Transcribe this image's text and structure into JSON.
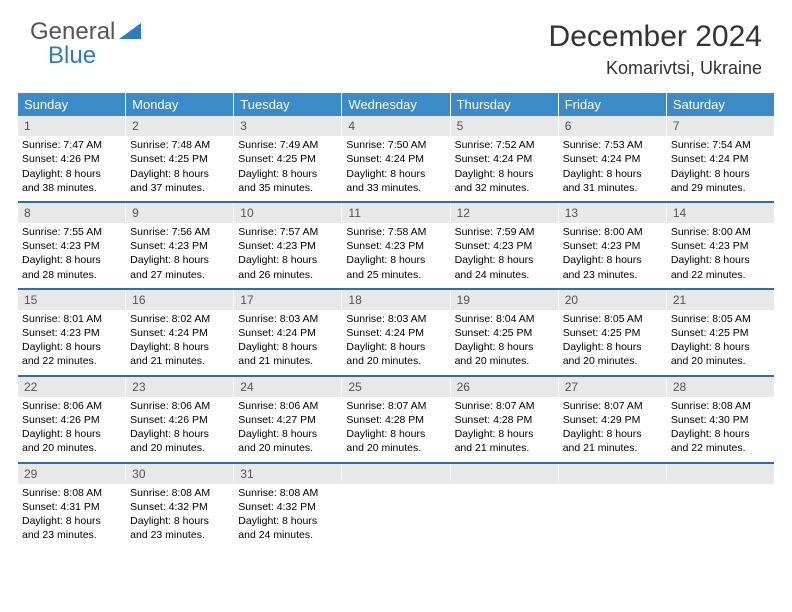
{
  "brand": {
    "part1": "General",
    "part2": "Blue"
  },
  "title": "December 2024",
  "location": "Komarivtsi, Ukraine",
  "colors": {
    "header_bg": "#3b8bc8",
    "header_text": "#ffffff",
    "week_border": "#2f6fa8",
    "daynum_bg": "#e8e8e8",
    "text": "#000000",
    "logo_blue": "#2f7bbf",
    "logo_gray": "#555555"
  },
  "dayNames": [
    "Sunday",
    "Monday",
    "Tuesday",
    "Wednesday",
    "Thursday",
    "Friday",
    "Saturday"
  ],
  "weeks": [
    [
      {
        "n": "1",
        "sr": "7:47 AM",
        "ss": "4:26 PM",
        "dl": "8 hours and 38 minutes."
      },
      {
        "n": "2",
        "sr": "7:48 AM",
        "ss": "4:25 PM",
        "dl": "8 hours and 37 minutes."
      },
      {
        "n": "3",
        "sr": "7:49 AM",
        "ss": "4:25 PM",
        "dl": "8 hours and 35 minutes."
      },
      {
        "n": "4",
        "sr": "7:50 AM",
        "ss": "4:24 PM",
        "dl": "8 hours and 33 minutes."
      },
      {
        "n": "5",
        "sr": "7:52 AM",
        "ss": "4:24 PM",
        "dl": "8 hours and 32 minutes."
      },
      {
        "n": "6",
        "sr": "7:53 AM",
        "ss": "4:24 PM",
        "dl": "8 hours and 31 minutes."
      },
      {
        "n": "7",
        "sr": "7:54 AM",
        "ss": "4:24 PM",
        "dl": "8 hours and 29 minutes."
      }
    ],
    [
      {
        "n": "8",
        "sr": "7:55 AM",
        "ss": "4:23 PM",
        "dl": "8 hours and 28 minutes."
      },
      {
        "n": "9",
        "sr": "7:56 AM",
        "ss": "4:23 PM",
        "dl": "8 hours and 27 minutes."
      },
      {
        "n": "10",
        "sr": "7:57 AM",
        "ss": "4:23 PM",
        "dl": "8 hours and 26 minutes."
      },
      {
        "n": "11",
        "sr": "7:58 AM",
        "ss": "4:23 PM",
        "dl": "8 hours and 25 minutes."
      },
      {
        "n": "12",
        "sr": "7:59 AM",
        "ss": "4:23 PM",
        "dl": "8 hours and 24 minutes."
      },
      {
        "n": "13",
        "sr": "8:00 AM",
        "ss": "4:23 PM",
        "dl": "8 hours and 23 minutes."
      },
      {
        "n": "14",
        "sr": "8:00 AM",
        "ss": "4:23 PM",
        "dl": "8 hours and 22 minutes."
      }
    ],
    [
      {
        "n": "15",
        "sr": "8:01 AM",
        "ss": "4:23 PM",
        "dl": "8 hours and 22 minutes."
      },
      {
        "n": "16",
        "sr": "8:02 AM",
        "ss": "4:24 PM",
        "dl": "8 hours and 21 minutes."
      },
      {
        "n": "17",
        "sr": "8:03 AM",
        "ss": "4:24 PM",
        "dl": "8 hours and 21 minutes."
      },
      {
        "n": "18",
        "sr": "8:03 AM",
        "ss": "4:24 PM",
        "dl": "8 hours and 20 minutes."
      },
      {
        "n": "19",
        "sr": "8:04 AM",
        "ss": "4:25 PM",
        "dl": "8 hours and 20 minutes."
      },
      {
        "n": "20",
        "sr": "8:05 AM",
        "ss": "4:25 PM",
        "dl": "8 hours and 20 minutes."
      },
      {
        "n": "21",
        "sr": "8:05 AM",
        "ss": "4:25 PM",
        "dl": "8 hours and 20 minutes."
      }
    ],
    [
      {
        "n": "22",
        "sr": "8:06 AM",
        "ss": "4:26 PM",
        "dl": "8 hours and 20 minutes."
      },
      {
        "n": "23",
        "sr": "8:06 AM",
        "ss": "4:26 PM",
        "dl": "8 hours and 20 minutes."
      },
      {
        "n": "24",
        "sr": "8:06 AM",
        "ss": "4:27 PM",
        "dl": "8 hours and 20 minutes."
      },
      {
        "n": "25",
        "sr": "8:07 AM",
        "ss": "4:28 PM",
        "dl": "8 hours and 20 minutes."
      },
      {
        "n": "26",
        "sr": "8:07 AM",
        "ss": "4:28 PM",
        "dl": "8 hours and 21 minutes."
      },
      {
        "n": "27",
        "sr": "8:07 AM",
        "ss": "4:29 PM",
        "dl": "8 hours and 21 minutes."
      },
      {
        "n": "28",
        "sr": "8:08 AM",
        "ss": "4:30 PM",
        "dl": "8 hours and 22 minutes."
      }
    ],
    [
      {
        "n": "29",
        "sr": "8:08 AM",
        "ss": "4:31 PM",
        "dl": "8 hours and 23 minutes."
      },
      {
        "n": "30",
        "sr": "8:08 AM",
        "ss": "4:32 PM",
        "dl": "8 hours and 23 minutes."
      },
      {
        "n": "31",
        "sr": "8:08 AM",
        "ss": "4:32 PM",
        "dl": "8 hours and 24 minutes."
      },
      {
        "empty": true
      },
      {
        "empty": true
      },
      {
        "empty": true
      },
      {
        "empty": true
      }
    ]
  ],
  "labels": {
    "sunrise": "Sunrise: ",
    "sunset": "Sunset: ",
    "daylight": "Daylight: "
  }
}
